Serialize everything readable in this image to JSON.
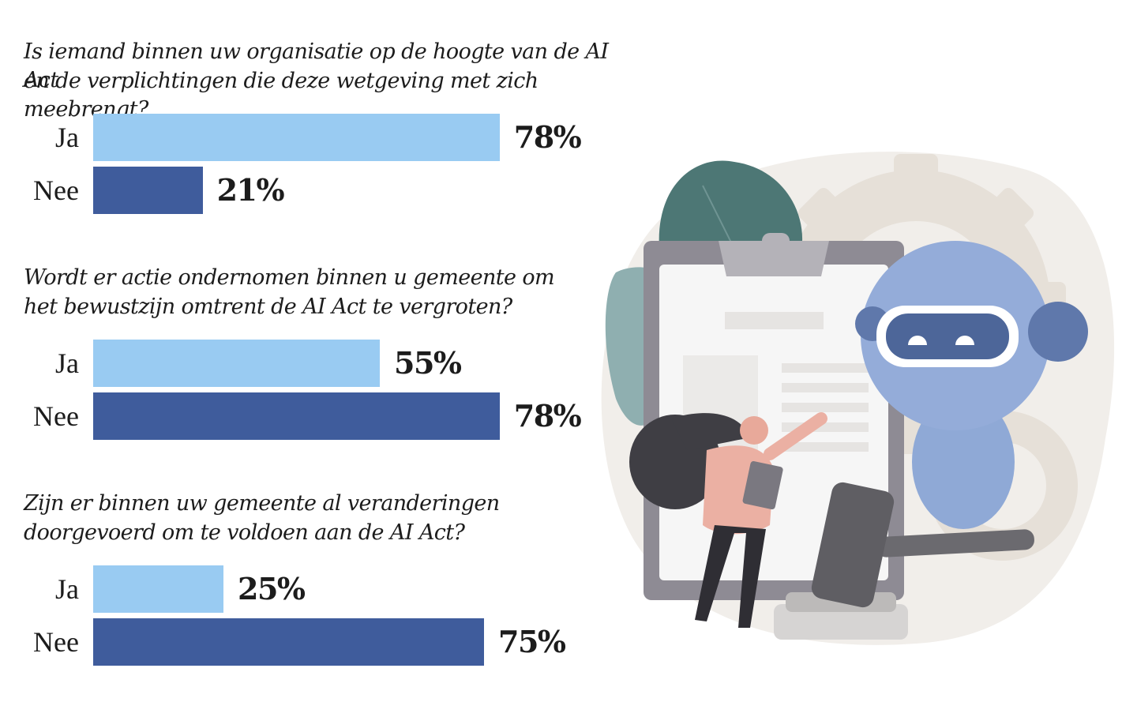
{
  "colors": {
    "ja": "#99cbf2",
    "nee": "#3f5c9c",
    "text": "#1c1c1c"
  },
  "chart_data": [
    {
      "type": "bar",
      "orientation": "horizontal",
      "title": "Is iemand binnen uw organisatie op de hoogte van de AI Act en de verplichtingen die deze wetgeving met zich meebrengt?",
      "title_lines": [
        "Is iemand binnen uw organisatie op de hoogte van de AI Act",
        "en de verplichtingen die deze wetgeving met zich meebrengt?"
      ],
      "categories": [
        "Ja",
        "Nee"
      ],
      "values": [
        78,
        21
      ],
      "value_labels": [
        "78%",
        "21%"
      ],
      "unit": "%",
      "xlim": [
        0,
        100
      ]
    },
    {
      "type": "bar",
      "orientation": "horizontal",
      "title": "Wordt er actie ondernomen binnen u gemeente om het bewustzijn omtrent de AI Act te vergroten?",
      "title_lines": [
        "Wordt er actie ondernomen binnen u gemeente om",
        "het bewustzijn omtrent de AI Act te vergroten?"
      ],
      "categories": [
        "Ja",
        "Nee"
      ],
      "values": [
        55,
        78
      ],
      "value_labels": [
        "55%",
        "78%"
      ],
      "unit": "%",
      "xlim": [
        0,
        100
      ]
    },
    {
      "type": "bar",
      "orientation": "horizontal",
      "title": "Zijn er binnen uw gemeente al veranderingen doorgevoerd om te voldoen aan de AI Act?",
      "title_lines": [
        "Zijn er binnen uw gemeente al veranderingen",
        "doorgevoerd om te voldoen aan de AI Act?"
      ],
      "categories": [
        "Ja",
        "Nee"
      ],
      "values": [
        25,
        75
      ],
      "value_labels": [
        "25%",
        "75%"
      ],
      "unit": "%",
      "xlim": [
        0,
        100
      ]
    }
  ]
}
